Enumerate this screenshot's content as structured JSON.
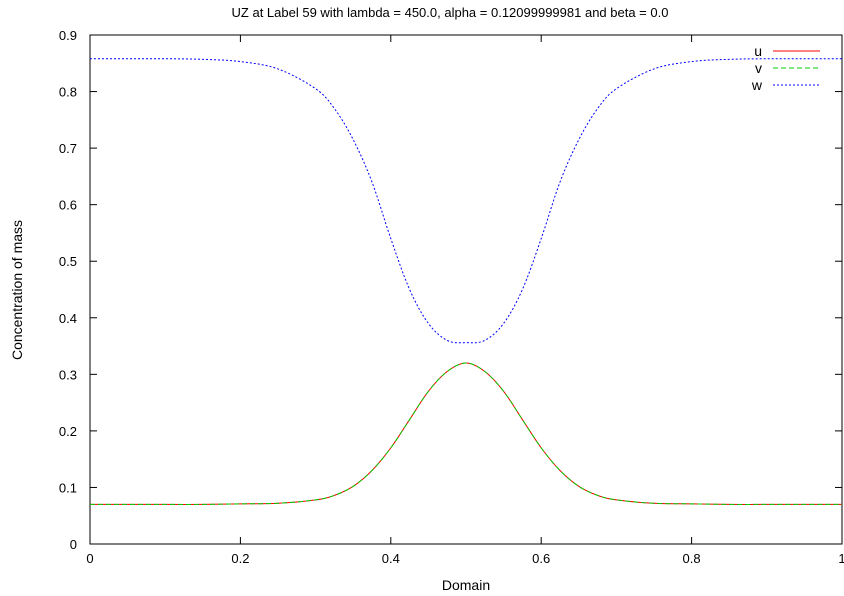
{
  "chart_data": {
    "type": "line",
    "title": "UZ at Label 59 with lambda = 450.0, alpha = 0.12099999981 and beta = 0.0",
    "xlabel": "Domain",
    "ylabel": "Concentration of mass",
    "xlim": [
      0,
      1
    ],
    "ylim": [
      0,
      0.9
    ],
    "x_ticks": [
      "0",
      "0.2",
      "0.4",
      "0.6",
      "0.8",
      "1"
    ],
    "y_ticks": [
      "0",
      "0.1",
      "0.2",
      "0.3",
      "0.4",
      "0.5",
      "0.6",
      "0.7",
      "0.8",
      "0.9"
    ],
    "grid": false,
    "legend_position": "top-right",
    "x": [
      0,
      0.05,
      0.1,
      0.15,
      0.2,
      0.25,
      0.3,
      0.325,
      0.35,
      0.375,
      0.4,
      0.425,
      0.45,
      0.475,
      0.5,
      0.525,
      0.55,
      0.575,
      0.6,
      0.625,
      0.65,
      0.675,
      0.7,
      0.75,
      0.8,
      0.85,
      0.9,
      0.95,
      1
    ],
    "series": [
      {
        "name": "u",
        "color": "#ff0000",
        "dash": "solid",
        "values": [
          0.07,
          0.07,
          0.07,
          0.07,
          0.071,
          0.072,
          0.078,
          0.086,
          0.102,
          0.13,
          0.17,
          0.22,
          0.27,
          0.305,
          0.32,
          0.305,
          0.27,
          0.22,
          0.17,
          0.13,
          0.102,
          0.086,
          0.078,
          0.072,
          0.071,
          0.07,
          0.07,
          0.07,
          0.07
        ]
      },
      {
        "name": "v",
        "color": "#00cc00",
        "dash": "dashed",
        "values": [
          0.07,
          0.07,
          0.07,
          0.07,
          0.071,
          0.072,
          0.078,
          0.086,
          0.102,
          0.13,
          0.17,
          0.22,
          0.27,
          0.305,
          0.32,
          0.305,
          0.27,
          0.22,
          0.17,
          0.13,
          0.102,
          0.086,
          0.078,
          0.072,
          0.071,
          0.07,
          0.07,
          0.07,
          0.07
        ]
      },
      {
        "name": "w",
        "color": "#0000ff",
        "dash": "dotted",
        "values": [
          0.858,
          0.858,
          0.858,
          0.857,
          0.853,
          0.84,
          0.805,
          0.77,
          0.715,
          0.64,
          0.54,
          0.45,
          0.39,
          0.36,
          0.356,
          0.36,
          0.39,
          0.45,
          0.54,
          0.64,
          0.715,
          0.77,
          0.805,
          0.84,
          0.853,
          0.857,
          0.858,
          0.858,
          0.858
        ]
      }
    ]
  }
}
